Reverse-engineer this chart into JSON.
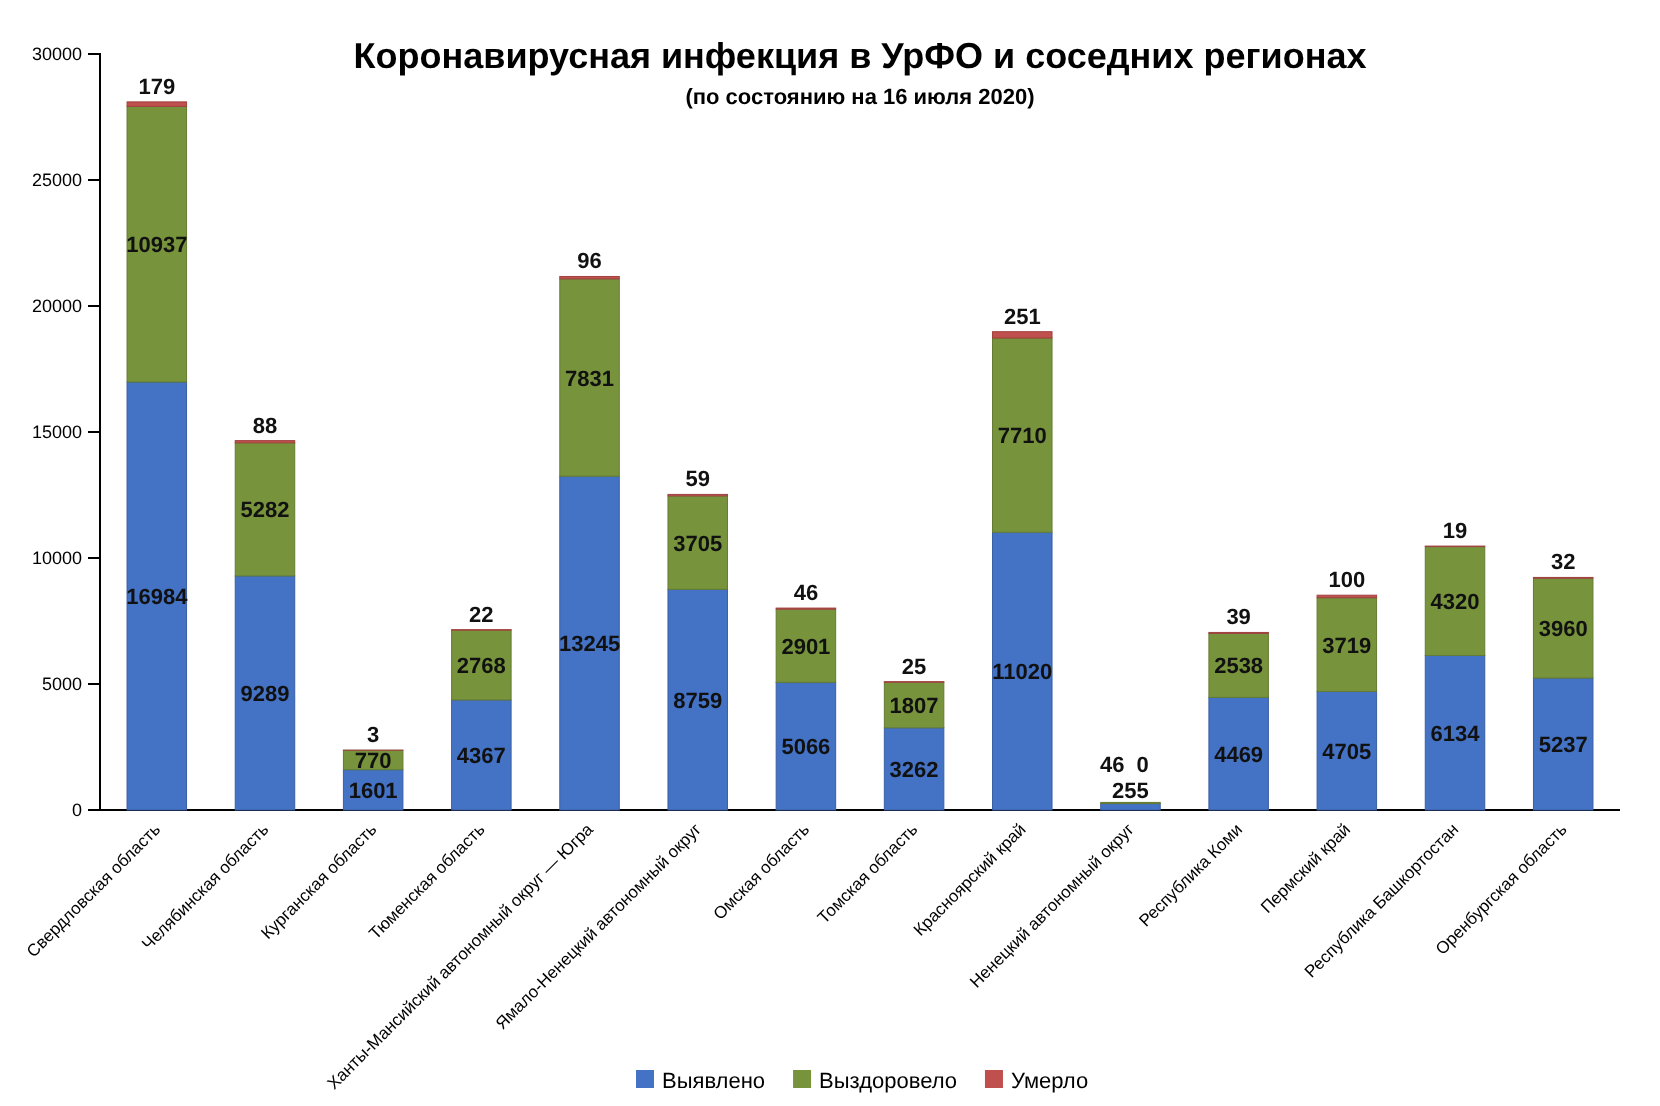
{
  "chart_data": {
    "type": "bar",
    "title": "Коронавирусная инфекция в УрФО и соседних регионах",
    "subtitle": "(по состоянию на 16 июля 2020)",
    "categories": [
      "Свердловская область",
      "Челябинская область",
      "Курганская область",
      "Тюменская область",
      "Ханты-Мансийский автономный округ — Югра",
      "Ямало-Ненецкий автономный округ",
      "Омская область",
      "Томская область",
      "Красноярский край",
      "Ненецкий автономный округ",
      "Республика Коми",
      "Пермский край",
      "Республика Башкортостан",
      "Оренбургская область"
    ],
    "series": [
      {
        "name": "Выявлено",
        "color": "#4472c4",
        "values": [
          16984,
          9289,
          1601,
          4367,
          13245,
          8759,
          5066,
          3262,
          11020,
          255,
          4469,
          4705,
          6134,
          5237
        ]
      },
      {
        "name": "Выздоровело",
        "color": "#77933c",
        "values": [
          10937,
          5282,
          770,
          2768,
          7831,
          3705,
          2901,
          1807,
          7710,
          46,
          2538,
          3719,
          4320,
          3960
        ]
      },
      {
        "name": "Умерло",
        "color": "#c0504d",
        "values": [
          179,
          88,
          3,
          22,
          96,
          59,
          46,
          25,
          251,
          0,
          39,
          100,
          19,
          32
        ]
      }
    ],
    "stacked": true,
    "data_labels": true,
    "ylim": [
      0,
      30000
    ],
    "yticks": [
      0,
      5000,
      10000,
      15000,
      20000,
      25000,
      30000
    ],
    "legend": "bottom"
  }
}
